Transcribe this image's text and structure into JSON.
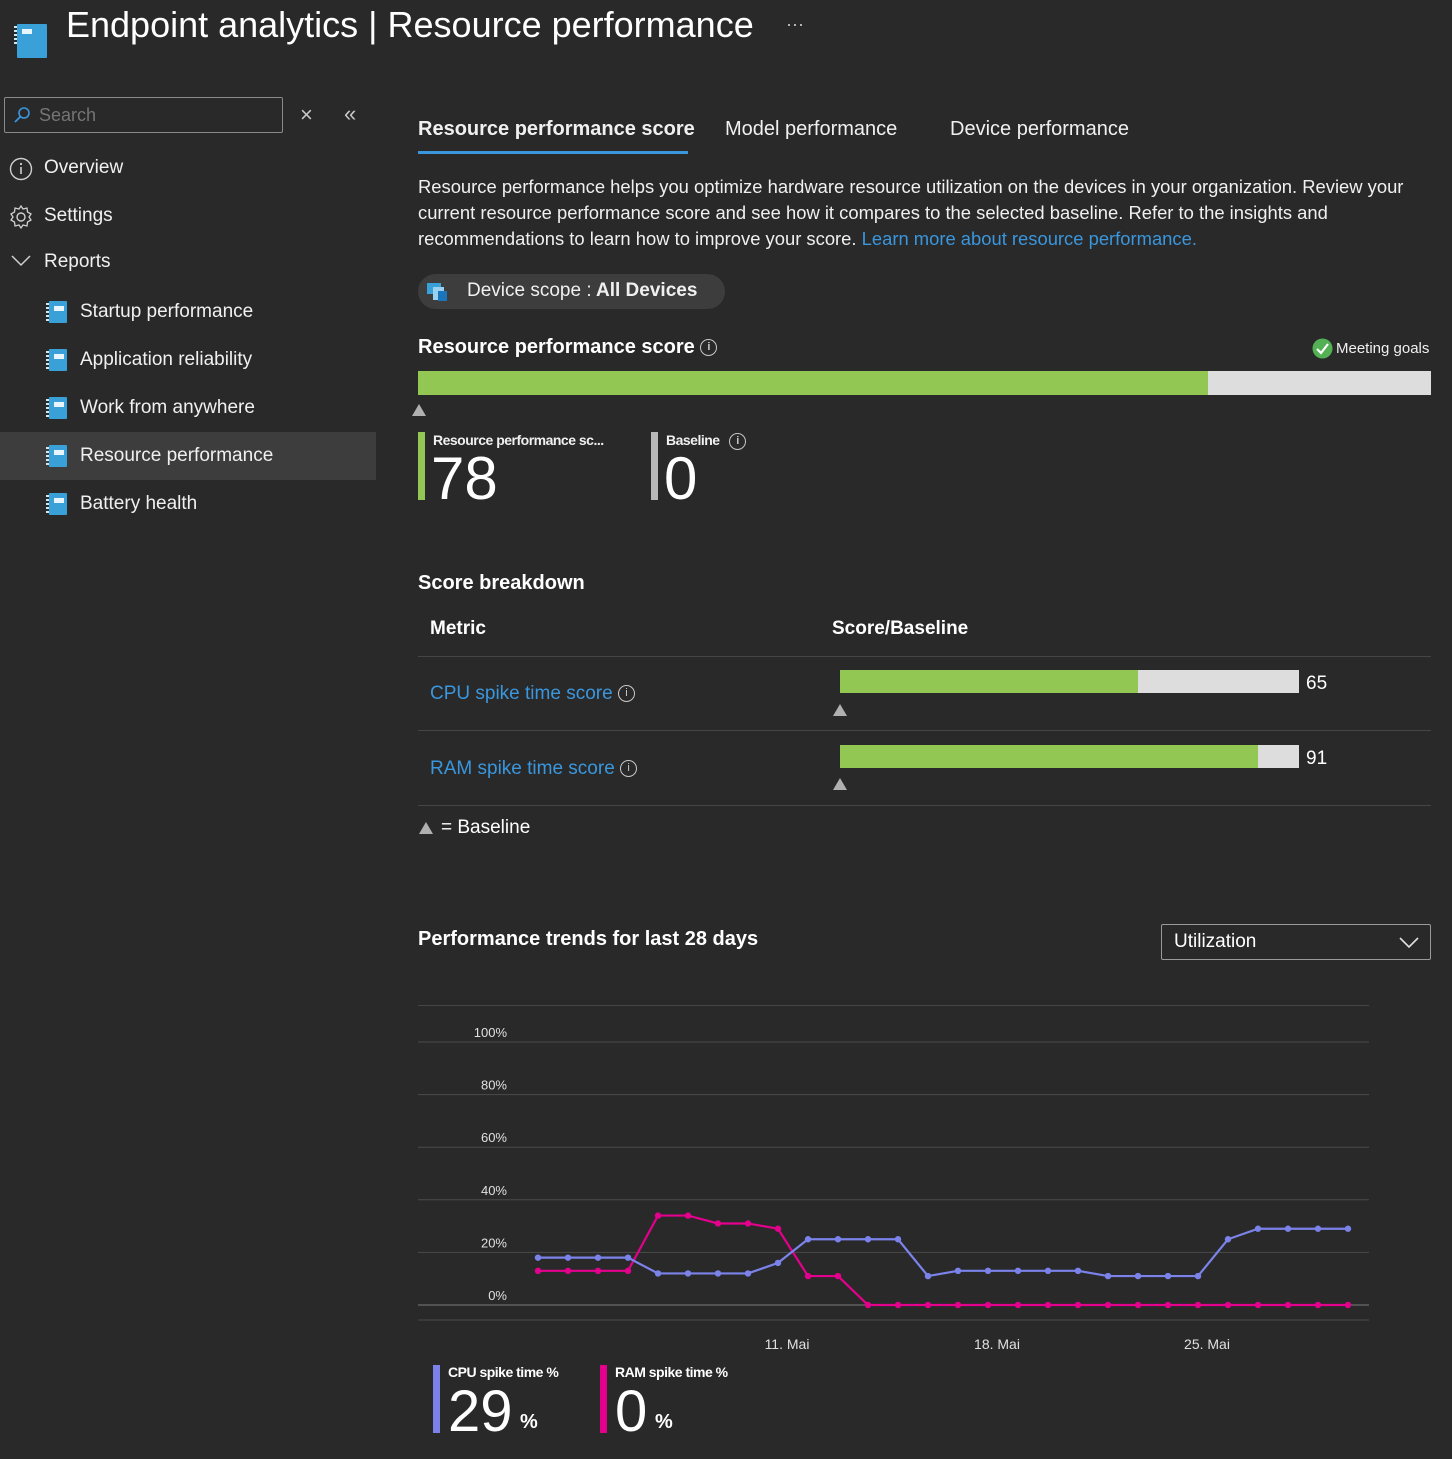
{
  "header": {
    "title": "Endpoint analytics | Resource performance",
    "more": "···"
  },
  "sidebar": {
    "search_placeholder": "Search",
    "close_glyph": "×",
    "collapse_glyph": "«",
    "items": [
      {
        "label": "Overview",
        "icon": "info-icon"
      },
      {
        "label": "Settings",
        "icon": "gear-icon"
      },
      {
        "label": "Reports",
        "icon": "chevron-down-icon"
      }
    ],
    "reports": [
      {
        "label": "Startup performance",
        "icon": "report-icon"
      },
      {
        "label": "Application reliability",
        "icon": "report-icon"
      },
      {
        "label": "Work from anywhere",
        "icon": "report-icon"
      },
      {
        "label": "Resource performance",
        "icon": "report-icon",
        "selected": true
      },
      {
        "label": "Battery health",
        "icon": "report-icon"
      }
    ]
  },
  "tabs": [
    {
      "label": "Resource performance score",
      "active": true
    },
    {
      "label": "Model performance",
      "active": false
    },
    {
      "label": "Device performance",
      "active": false
    }
  ],
  "description": {
    "text": "Resource performance helps you optimize hardware resource utilization on the devices in your organization. Review your current resource performance score and see how it compares to the selected baseline. Refer to the insights and recommendations to learn how to improve your score.",
    "link": "Learn more about resource performance."
  },
  "scope": {
    "label": "Device scope : ",
    "value": "All Devices"
  },
  "score": {
    "title": "Resource performance score",
    "status": "Meeting goals",
    "score_label": "Resource performance sc...",
    "score_value": "78",
    "score_fraction": 0.78,
    "baseline_label": "Baseline",
    "baseline_value": "0",
    "baseline_fraction": 0
  },
  "breakdown": {
    "title": "Score breakdown",
    "col_metric": "Metric",
    "col_score": "Score/Baseline",
    "rows": [
      {
        "metric": "CPU spike time score",
        "value": "65",
        "fraction": 0.65
      },
      {
        "metric": "RAM spike time score",
        "value": "91",
        "fraction": 0.91
      }
    ],
    "legend": "= Baseline"
  },
  "trends": {
    "title": "Performance trends for last 28 days",
    "dropdown_value": "Utilization",
    "cpu_label": "CPU spike time %",
    "cpu_value": "29",
    "ram_label": "RAM spike time %",
    "ram_value": "0",
    "percent_sign": "%"
  },
  "chart_data": {
    "type": "line",
    "y_ticks": [
      "100%",
      "80%",
      "60%",
      "40%",
      "20%",
      "0%"
    ],
    "ylim": [
      0,
      100
    ],
    "x_ticks": [
      "11. Mai",
      "18. Mai",
      "25. Mai"
    ],
    "x": [
      3,
      4,
      5,
      6,
      7,
      8,
      9,
      10,
      11,
      12,
      13,
      14,
      15,
      16,
      17,
      18,
      19,
      20,
      21,
      22,
      23,
      24,
      25,
      26,
      27,
      28,
      29,
      30
    ],
    "series": [
      {
        "name": "CPU spike time %",
        "color": "#7b83eb",
        "values": [
          18,
          18,
          18,
          18,
          12,
          12,
          12,
          12,
          16,
          25,
          25,
          25,
          25,
          11,
          13,
          13,
          13,
          13,
          13,
          11,
          11,
          11,
          11,
          25,
          29,
          29,
          29,
          29
        ]
      },
      {
        "name": "RAM spike time %",
        "color": "#e3008c",
        "values": [
          13,
          13,
          13,
          13,
          34,
          34,
          31,
          31,
          29,
          11,
          11,
          0,
          0,
          0,
          0,
          0,
          0,
          0,
          0,
          0,
          0,
          0,
          0,
          0,
          0,
          0,
          0,
          0
        ]
      }
    ]
  }
}
